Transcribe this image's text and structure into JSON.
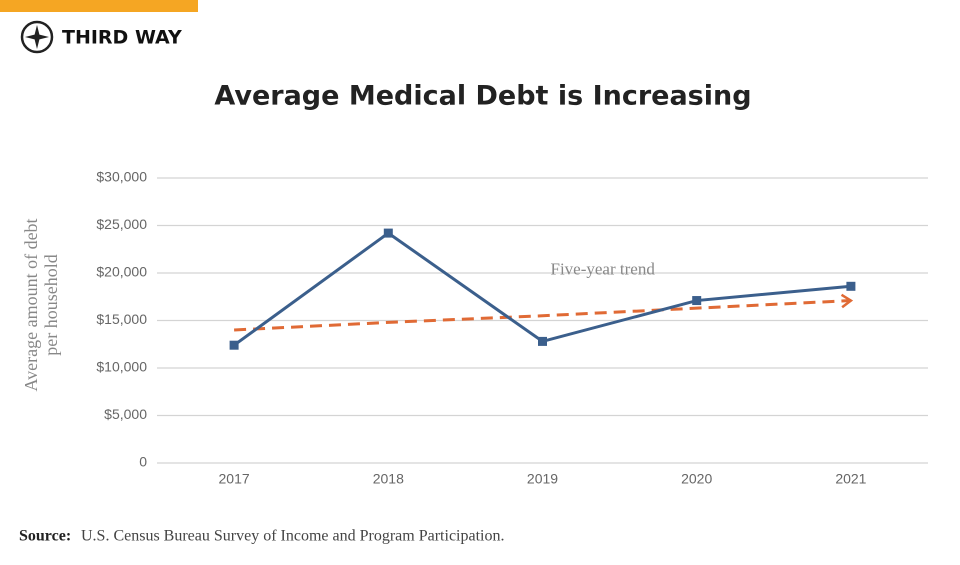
{
  "brand": "THIRD WAY",
  "chart_data": {
    "type": "line",
    "title": "Average Medical Debt is Increasing",
    "ylabel": [
      "Average amount of debt",
      "per household"
    ],
    "categories": [
      "2017",
      "2018",
      "2019",
      "2020",
      "2021"
    ],
    "series": [
      {
        "name": null,
        "color": "#3b5f8c",
        "values": [
          12400,
          24200,
          12800,
          17100,
          18600
        ]
      },
      {
        "name": "Five-year trend",
        "color": "#e06a35",
        "dashed": true,
        "values": [
          14000,
          14800,
          15500,
          16300,
          17100
        ]
      }
    ],
    "ylim": [
      0,
      30000
    ],
    "yticks": [
      0,
      {
        "value": 5000,
        "label": "$5,000"
      },
      {
        "value": 10000,
        "label": "$10,000"
      },
      {
        "value": 15000,
        "label": "$15,000"
      },
      {
        "value": 20000,
        "label": "$20,000"
      },
      {
        "value": 25000,
        "label": "$25,000"
      },
      {
        "value": 30000,
        "label": "$30,000"
      }
    ],
    "grid": true
  },
  "source": {
    "label": "Source:",
    "text": "U.S. Census Bureau Survey of Income and Program Participation."
  }
}
